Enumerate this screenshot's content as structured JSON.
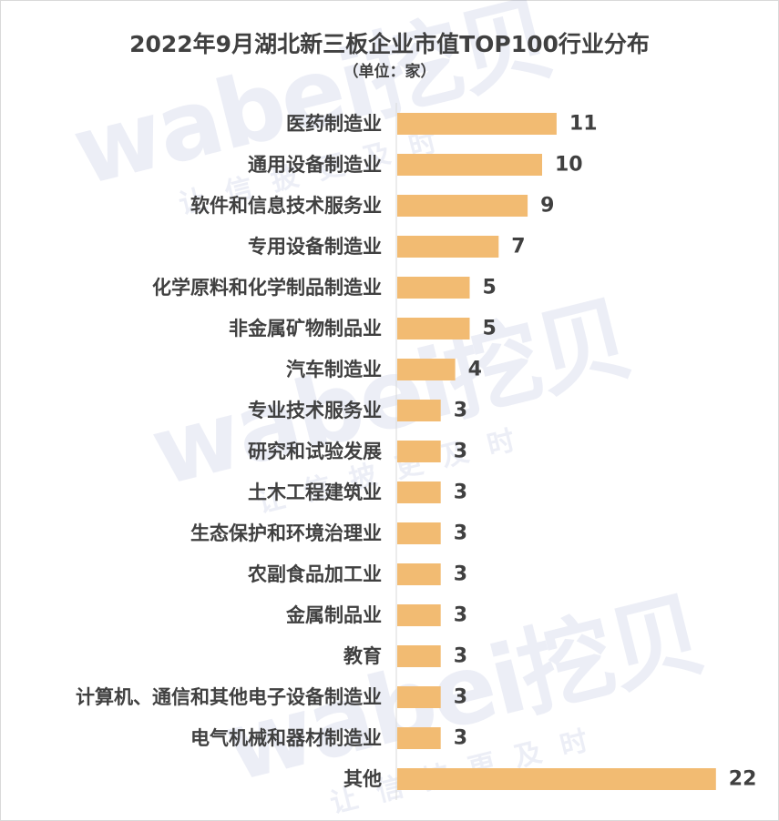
{
  "watermark": {
    "brand": "wabei挖贝",
    "slogan": "让信披更及时"
  },
  "colors": {
    "bar": "#f2bb72",
    "axis": "#d9d9d9",
    "text": "#404040"
  },
  "chart_data": {
    "type": "bar",
    "orientation": "horizontal",
    "title": "2022年9月湖北新三板企业市值TOP100行业分布",
    "subtitle": "（单位：家）",
    "xlabel": "",
    "ylabel": "",
    "xlim": [
      0,
      22
    ],
    "grid": false,
    "legend": "none",
    "categories": [
      "医药制造业",
      "通用设备制造业",
      "软件和信息技术服务业",
      "专用设备制造业",
      "化学原料和化学制品制造业",
      "非金属矿物制品业",
      "汽车制造业",
      "专业技术服务业",
      "研究和试验发展",
      "土木工程建筑业",
      "生态保护和环境治理业",
      "农副食品加工业",
      "金属制品业",
      "教育",
      "计算机、通信和其他电子设备制造业",
      "电气机械和器材制造业",
      "其他"
    ],
    "values": [
      11,
      10,
      9,
      7,
      5,
      5,
      4,
      3,
      3,
      3,
      3,
      3,
      3,
      3,
      3,
      3,
      22
    ]
  }
}
